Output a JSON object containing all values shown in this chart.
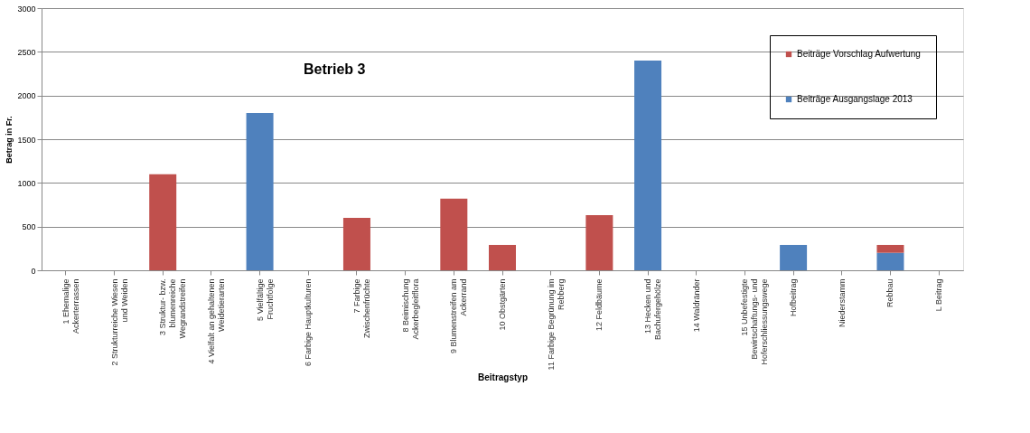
{
  "chart_data": {
    "type": "bar",
    "title": "Betrieb 3",
    "xlabel": "Beitragstyp",
    "ylabel": "Betrag in Fr.",
    "stacked": true,
    "categories": [
      "1 Ehemalige Ackerterrassen",
      "2 Strukturreiche Wiesen und Weiden",
      "3 Struktur- bzw. blumenreiche Wegrandstreifen",
      "4 Vielfalt an gehaltenen Weidetierarten",
      "5 Vielfältige Fruchtfolge",
      "6 Farbige Hauptkulturen",
      "7 Farbige Zwischenfrüchte",
      "8 Beimischung Ackerbegleitflora",
      "9 Blumenstreifen am Ackerrand",
      "10 Obstgärten",
      "11 Farbige Begrünung im Rebberg",
      "12 Feldbäume",
      "13 Hecken und Bachufergehölze",
      "14 Waldränder",
      "15 Unbefestigte Bewirtschaftungs- und Hoferschliessungswege",
      "Hofbeitrag",
      "Niederstamm",
      "Rebbau",
      "L Beitrag"
    ],
    "series": [
      {
        "name": "Beiträge Ausgangslage 2013",
        "color": "#4f81bd",
        "values": [
          null,
          null,
          null,
          null,
          1800,
          null,
          null,
          null,
          null,
          null,
          null,
          null,
          2400,
          null,
          null,
          290,
          null,
          200,
          null
        ]
      },
      {
        "name": "Beiträge Vorschlag Aufwertung",
        "color": "#c0504d",
        "values": [
          null,
          null,
          1100,
          null,
          null,
          null,
          600,
          null,
          820,
          290,
          null,
          630,
          null,
          null,
          null,
          null,
          null,
          90,
          null
        ]
      }
    ],
    "ylim": [
      0,
      3000
    ],
    "yticks": [
      0,
      500,
      1000,
      1500,
      2000,
      2500,
      3000
    ],
    "grid": "y",
    "legend": "top right"
  }
}
